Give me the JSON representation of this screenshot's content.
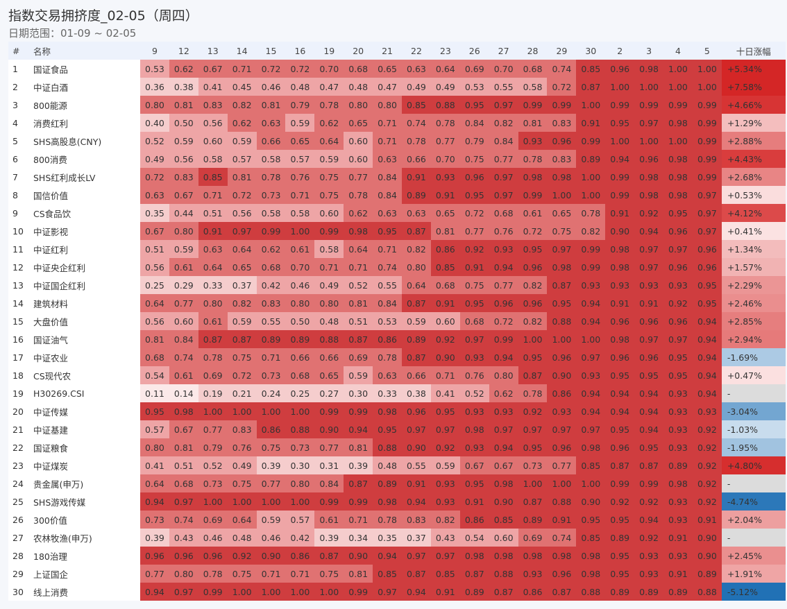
{
  "title": "指数交易拥挤度_02-05（周四）",
  "subtitle": "日期范围：01-09 ~ 02-05",
  "chart_data": {
    "type": "heatmap",
    "columns": {
      "index": "#",
      "name": "名称",
      "change": "十日涨幅"
    },
    "dates": [
      "9",
      "12",
      "13",
      "14",
      "15",
      "16",
      "19",
      "20",
      "21",
      "22",
      "23",
      "26",
      "27",
      "28",
      "29",
      "30",
      "2",
      "3",
      "4",
      "5"
    ],
    "colors": {
      "level1": "#fbe9e9",
      "level2": "#f5cdcd",
      "level3": "#eea5a6",
      "level4": "#e07272",
      "level5": "#cf3d3f",
      "pos_max": "#d42626",
      "neg_max": "#2171b5",
      "missing": "#dcdcdc"
    },
    "rows": [
      {
        "i": "1",
        "name": "国证食品",
        "v": [
          "0.53",
          "0.62",
          "0.67",
          "0.71",
          "0.72",
          "0.72",
          "0.70",
          "0.68",
          "0.65",
          "0.63",
          "0.64",
          "0.69",
          "0.70",
          "0.68",
          "0.74",
          "0.85",
          "0.96",
          "0.98",
          "1.00",
          "1.00"
        ],
        "chg": "+5.34%"
      },
      {
        "i": "2",
        "name": "中证白酒",
        "v": [
          "0.36",
          "0.38",
          "0.41",
          "0.45",
          "0.46",
          "0.48",
          "0.47",
          "0.48",
          "0.47",
          "0.49",
          "0.49",
          "0.53",
          "0.55",
          "0.58",
          "0.72",
          "0.87",
          "1.00",
          "1.00",
          "1.00",
          "1.00"
        ],
        "chg": "+7.58%"
      },
      {
        "i": "3",
        "name": "800能源",
        "v": [
          "0.80",
          "0.81",
          "0.83",
          "0.82",
          "0.81",
          "0.79",
          "0.78",
          "0.80",
          "0.80",
          "0.85",
          "0.88",
          "0.95",
          "0.97",
          "0.99",
          "0.99",
          "1.00",
          "0.99",
          "0.99",
          "0.99",
          "0.99"
        ],
        "chg": "+4.66%"
      },
      {
        "i": "4",
        "name": "消费红利",
        "v": [
          "0.40",
          "0.50",
          "0.56",
          "0.62",
          "0.63",
          "0.59",
          "0.62",
          "0.65",
          "0.71",
          "0.74",
          "0.78",
          "0.84",
          "0.82",
          "0.81",
          "0.83",
          "0.91",
          "0.95",
          "0.97",
          "0.98",
          "0.99"
        ],
        "chg": "+1.29%"
      },
      {
        "i": "5",
        "name": "SHS高股息(CNY)",
        "v": [
          "0.52",
          "0.59",
          "0.60",
          "0.59",
          "0.66",
          "0.65",
          "0.64",
          "0.60",
          "0.71",
          "0.78",
          "0.77",
          "0.79",
          "0.84",
          "0.93",
          "0.96",
          "0.99",
          "1.00",
          "1.00",
          "1.00",
          "0.99"
        ],
        "chg": "+2.88%"
      },
      {
        "i": "6",
        "name": "800消费",
        "v": [
          "0.49",
          "0.56",
          "0.58",
          "0.57",
          "0.58",
          "0.57",
          "0.59",
          "0.60",
          "0.63",
          "0.66",
          "0.70",
          "0.75",
          "0.77",
          "0.78",
          "0.83",
          "0.89",
          "0.94",
          "0.96",
          "0.98",
          "0.99"
        ],
        "chg": "+4.43%"
      },
      {
        "i": "7",
        "name": "SHS红利成长LV",
        "v": [
          "0.72",
          "0.83",
          "0.85",
          "0.81",
          "0.78",
          "0.76",
          "0.75",
          "0.77",
          "0.84",
          "0.91",
          "0.93",
          "0.96",
          "0.97",
          "0.98",
          "0.98",
          "1.00",
          "0.99",
          "0.98",
          "0.98",
          "0.99"
        ],
        "chg": "+2.68%"
      },
      {
        "i": "8",
        "name": "国信价值",
        "v": [
          "0.63",
          "0.67",
          "0.71",
          "0.72",
          "0.73",
          "0.71",
          "0.75",
          "0.78",
          "0.84",
          "0.89",
          "0.91",
          "0.95",
          "0.97",
          "0.99",
          "1.00",
          "1.00",
          "0.99",
          "0.98",
          "0.98",
          "0.97"
        ],
        "chg": "+0.53%"
      },
      {
        "i": "9",
        "name": "CS食品饮",
        "v": [
          "0.35",
          "0.44",
          "0.51",
          "0.56",
          "0.58",
          "0.58",
          "0.60",
          "0.62",
          "0.63",
          "0.63",
          "0.65",
          "0.72",
          "0.68",
          "0.61",
          "0.65",
          "0.78",
          "0.91",
          "0.92",
          "0.95",
          "0.97"
        ],
        "chg": "+4.12%"
      },
      {
        "i": "10",
        "name": "中证影视",
        "v": [
          "0.67",
          "0.80",
          "0.91",
          "0.97",
          "0.99",
          "1.00",
          "0.99",
          "0.98",
          "0.95",
          "0.87",
          "0.81",
          "0.77",
          "0.76",
          "0.72",
          "0.75",
          "0.82",
          "0.90",
          "0.94",
          "0.96",
          "0.97"
        ],
        "chg": "+0.41%"
      },
      {
        "i": "11",
        "name": "中证红利",
        "v": [
          "0.51",
          "0.59",
          "0.63",
          "0.64",
          "0.62",
          "0.61",
          "0.58",
          "0.64",
          "0.71",
          "0.82",
          "0.86",
          "0.92",
          "0.93",
          "0.95",
          "0.97",
          "0.99",
          "0.98",
          "0.97",
          "0.97",
          "0.96"
        ],
        "chg": "+1.34%"
      },
      {
        "i": "12",
        "name": "中证央企红利",
        "v": [
          "0.56",
          "0.61",
          "0.64",
          "0.65",
          "0.68",
          "0.70",
          "0.71",
          "0.71",
          "0.74",
          "0.80",
          "0.85",
          "0.91",
          "0.94",
          "0.96",
          "0.98",
          "0.99",
          "0.98",
          "0.97",
          "0.96",
          "0.96"
        ],
        "chg": "+1.57%"
      },
      {
        "i": "13",
        "name": "中证国企红利",
        "v": [
          "0.25",
          "0.29",
          "0.33",
          "0.37",
          "0.42",
          "0.46",
          "0.49",
          "0.52",
          "0.55",
          "0.64",
          "0.68",
          "0.75",
          "0.77",
          "0.82",
          "0.87",
          "0.93",
          "0.93",
          "0.93",
          "0.93",
          "0.95"
        ],
        "chg": "+2.29%"
      },
      {
        "i": "14",
        "name": "建筑材料",
        "v": [
          "0.64",
          "0.77",
          "0.80",
          "0.82",
          "0.83",
          "0.80",
          "0.80",
          "0.81",
          "0.84",
          "0.87",
          "0.91",
          "0.95",
          "0.96",
          "0.96",
          "0.95",
          "0.94",
          "0.91",
          "0.91",
          "0.92",
          "0.95"
        ],
        "chg": "+2.46%"
      },
      {
        "i": "15",
        "name": "大盘价值",
        "v": [
          "0.56",
          "0.60",
          "0.61",
          "0.59",
          "0.55",
          "0.50",
          "0.48",
          "0.51",
          "0.53",
          "0.59",
          "0.60",
          "0.68",
          "0.72",
          "0.82",
          "0.88",
          "0.94",
          "0.96",
          "0.96",
          "0.96",
          "0.94"
        ],
        "chg": "+2.85%"
      },
      {
        "i": "16",
        "name": "国证油气",
        "v": [
          "0.81",
          "0.84",
          "0.87",
          "0.87",
          "0.89",
          "0.89",
          "0.88",
          "0.87",
          "0.86",
          "0.89",
          "0.92",
          "0.97",
          "0.99",
          "1.00",
          "1.00",
          "1.00",
          "0.98",
          "0.97",
          "0.97",
          "0.94"
        ],
        "chg": "+2.94%"
      },
      {
        "i": "17",
        "name": "中证农业",
        "v": [
          "0.68",
          "0.74",
          "0.78",
          "0.75",
          "0.71",
          "0.66",
          "0.66",
          "0.69",
          "0.78",
          "0.87",
          "0.90",
          "0.93",
          "0.94",
          "0.95",
          "0.96",
          "0.97",
          "0.96",
          "0.96",
          "0.95",
          "0.94"
        ],
        "chg": "-1.69%"
      },
      {
        "i": "18",
        "name": "CS现代农",
        "v": [
          "0.54",
          "0.61",
          "0.69",
          "0.72",
          "0.73",
          "0.68",
          "0.65",
          "0.59",
          "0.63",
          "0.66",
          "0.71",
          "0.76",
          "0.80",
          "0.87",
          "0.90",
          "0.93",
          "0.95",
          "0.95",
          "0.95",
          "0.94"
        ],
        "chg": "+0.47%"
      },
      {
        "i": "19",
        "name": "H30269.CSI",
        "v": [
          "0.11",
          "0.14",
          "0.19",
          "0.21",
          "0.24",
          "0.25",
          "0.27",
          "0.30",
          "0.33",
          "0.38",
          "0.41",
          "0.52",
          "0.62",
          "0.78",
          "0.86",
          "0.94",
          "0.94",
          "0.94",
          "0.93",
          "0.94"
        ],
        "chg": "-"
      },
      {
        "i": "20",
        "name": "中证传媒",
        "v": [
          "0.95",
          "0.98",
          "1.00",
          "1.00",
          "1.00",
          "1.00",
          "0.99",
          "0.99",
          "0.98",
          "0.96",
          "0.95",
          "0.93",
          "0.93",
          "0.92",
          "0.93",
          "0.94",
          "0.94",
          "0.94",
          "0.93",
          "0.93"
        ],
        "chg": "-3.04%"
      },
      {
        "i": "21",
        "name": "中证基建",
        "v": [
          "0.57",
          "0.67",
          "0.77",
          "0.83",
          "0.86",
          "0.88",
          "0.90",
          "0.94",
          "0.95",
          "0.97",
          "0.97",
          "0.98",
          "0.97",
          "0.97",
          "0.97",
          "0.97",
          "0.95",
          "0.94",
          "0.93",
          "0.92"
        ],
        "chg": "-1.03%"
      },
      {
        "i": "22",
        "name": "国证粮食",
        "v": [
          "0.80",
          "0.81",
          "0.79",
          "0.76",
          "0.75",
          "0.73",
          "0.77",
          "0.81",
          "0.88",
          "0.90",
          "0.92",
          "0.93",
          "0.94",
          "0.95",
          "0.96",
          "0.98",
          "0.96",
          "0.95",
          "0.93",
          "0.92"
        ],
        "chg": "-1.95%"
      },
      {
        "i": "23",
        "name": "中证煤炭",
        "v": [
          "0.41",
          "0.51",
          "0.52",
          "0.49",
          "0.39",
          "0.30",
          "0.31",
          "0.39",
          "0.48",
          "0.55",
          "0.59",
          "0.67",
          "0.67",
          "0.73",
          "0.77",
          "0.85",
          "0.87",
          "0.87",
          "0.89",
          "0.92"
        ],
        "chg": "+4.80%"
      },
      {
        "i": "24",
        "name": "贵金属(申万)",
        "v": [
          "0.64",
          "0.68",
          "0.73",
          "0.75",
          "0.77",
          "0.80",
          "0.84",
          "0.87",
          "0.89",
          "0.91",
          "0.93",
          "0.95",
          "0.98",
          "1.00",
          "1.00",
          "1.00",
          "0.99",
          "0.99",
          "0.98",
          "0.92"
        ],
        "chg": "-"
      },
      {
        "i": "25",
        "name": "SHS游戏传媒",
        "v": [
          "0.94",
          "0.97",
          "1.00",
          "1.00",
          "1.00",
          "1.00",
          "0.99",
          "0.99",
          "0.98",
          "0.94",
          "0.93",
          "0.91",
          "0.90",
          "0.87",
          "0.88",
          "0.90",
          "0.92",
          "0.92",
          "0.93",
          "0.92"
        ],
        "chg": "-4.74%"
      },
      {
        "i": "26",
        "name": "300价值",
        "v": [
          "0.73",
          "0.74",
          "0.69",
          "0.64",
          "0.59",
          "0.57",
          "0.61",
          "0.71",
          "0.78",
          "0.83",
          "0.82",
          "0.86",
          "0.85",
          "0.89",
          "0.91",
          "0.95",
          "0.95",
          "0.94",
          "0.93",
          "0.91"
        ],
        "chg": "+2.04%"
      },
      {
        "i": "27",
        "name": "农林牧渔(申万)",
        "v": [
          "0.39",
          "0.43",
          "0.46",
          "0.48",
          "0.46",
          "0.42",
          "0.39",
          "0.34",
          "0.35",
          "0.37",
          "0.43",
          "0.54",
          "0.60",
          "0.69",
          "0.74",
          "0.85",
          "0.89",
          "0.92",
          "0.91",
          "0.90"
        ],
        "chg": "-"
      },
      {
        "i": "28",
        "name": "180治理",
        "v": [
          "0.96",
          "0.96",
          "0.96",
          "0.92",
          "0.90",
          "0.86",
          "0.87",
          "0.90",
          "0.94",
          "0.97",
          "0.97",
          "0.98",
          "0.98",
          "0.98",
          "0.98",
          "0.98",
          "0.95",
          "0.93",
          "0.93",
          "0.90"
        ],
        "chg": "+2.45%"
      },
      {
        "i": "29",
        "name": "上证国企",
        "v": [
          "0.77",
          "0.80",
          "0.78",
          "0.75",
          "0.71",
          "0.71",
          "0.75",
          "0.81",
          "0.85",
          "0.87",
          "0.85",
          "0.87",
          "0.88",
          "0.93",
          "0.96",
          "0.98",
          "0.95",
          "0.93",
          "0.91",
          "0.89"
        ],
        "chg": "+1.91%"
      },
      {
        "i": "30",
        "name": "线上消费",
        "v": [
          "0.94",
          "0.97",
          "0.99",
          "1.00",
          "1.00",
          "1.00",
          "1.00",
          "0.99",
          "0.97",
          "0.94",
          "0.91",
          "0.89",
          "0.87",
          "0.86",
          "0.87",
          "0.88",
          "0.89",
          "0.89",
          "0.89",
          "0.88"
        ],
        "chg": "-5.12%"
      }
    ]
  }
}
